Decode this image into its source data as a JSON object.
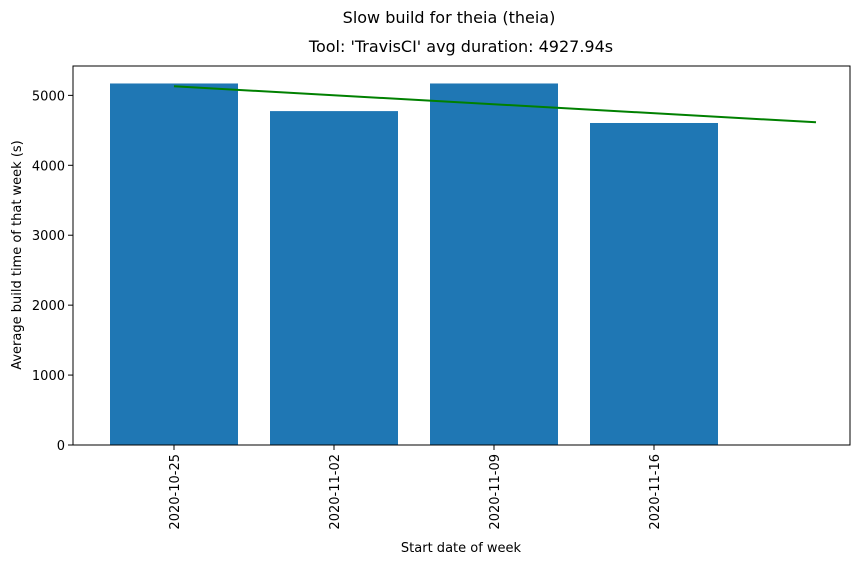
{
  "chart_data": {
    "type": "bar",
    "title": "Slow build for theia (theia)",
    "subtitle": "Tool: 'TravisCI' avg duration: 4927.94s",
    "xlabel": "Start date of week",
    "ylabel": "Average build time of that week (s)",
    "categories": [
      "2020-10-25",
      "2020-11-02",
      "2020-11-09",
      "2020-11-16"
    ],
    "values": [
      5170,
      4775,
      5170,
      4605
    ],
    "ylim": [
      0,
      5420
    ],
    "yticks": [
      0,
      1000,
      2000,
      3000,
      4000,
      5000
    ],
    "ytick_labels": [
      "0",
      "1000",
      "2000",
      "3000",
      "4000",
      "5000"
    ],
    "trend": {
      "type": "line",
      "x": [
        "2020-10-25",
        "2020-11-25"
      ],
      "values": [
        5130,
        4615
      ]
    },
    "grid": false,
    "bar_color": "#1f77b4",
    "trend_color": "#008000"
  }
}
